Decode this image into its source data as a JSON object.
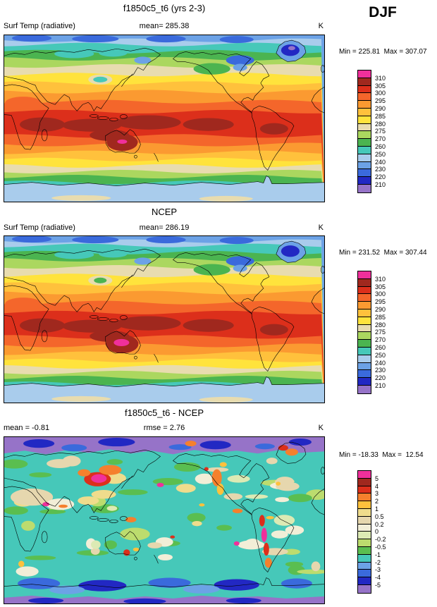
{
  "figure": {
    "season": "DJF",
    "panels": [
      {
        "title": "f1850c5_t6 (yrs 2-3)",
        "left": "Surf Temp (radiative)",
        "center": "mean= 285.38",
        "unit": "K",
        "minmax": "Min = 225.81  Max = 307.07"
      },
      {
        "title": "NCEP",
        "left": "Surf Temp (radiative)",
        "center": "mean= 286.19",
        "unit": "K",
        "minmax": "Min = 231.52  Max = 307.44"
      },
      {
        "title": "f1850c5_t6 - NCEP",
        "left": "mean = -0.81",
        "center": "rmse =  2.76",
        "unit": "K",
        "minmax": "Min = -18.33  Max =  12.54"
      }
    ]
  },
  "chart_data": [
    {
      "type": "heatmap",
      "subtype": "filled_contour_global_map",
      "season": "DJF",
      "title": "f1850c5_t6 (yrs 2-3)",
      "variable": "Surf Temp (radiative)",
      "units": "K",
      "stats": {
        "mean": 285.38,
        "min": 225.81,
        "max": 307.07
      },
      "contour_levels": [
        210,
        220,
        230,
        240,
        250,
        260,
        270,
        275,
        280,
        285,
        290,
        295,
        300,
        305,
        310
      ],
      "colorbar_labels_top_to_bottom": [
        "310",
        "305",
        "300",
        "295",
        "290",
        "285",
        "280",
        "275",
        "270",
        "260",
        "250",
        "240",
        "230",
        "220",
        "210"
      ],
      "colors_top_to_bottom": [
        "#F0309B",
        "#A0281E",
        "#DC2F1B",
        "#F4662B",
        "#FB9A31",
        "#FFC13C",
        "#FFE33C",
        "#E8DCAF",
        "#ABD75F",
        "#4BB450",
        "#46C8B9",
        "#A9CCEC",
        "#6CA2E6",
        "#3A6ADC",
        "#2228C3",
        "#9673C8"
      ]
    },
    {
      "type": "heatmap",
      "subtype": "filled_contour_global_map",
      "season": "DJF",
      "title": "NCEP",
      "variable": "Surf Temp (radiative)",
      "units": "K",
      "stats": {
        "mean": 286.19,
        "min": 231.52,
        "max": 307.44
      },
      "contour_levels": [
        210,
        220,
        230,
        240,
        250,
        260,
        270,
        275,
        280,
        285,
        290,
        295,
        300,
        305,
        310
      ],
      "colorbar_labels_top_to_bottom": [
        "310",
        "305",
        "300",
        "295",
        "290",
        "285",
        "280",
        "275",
        "270",
        "260",
        "250",
        "240",
        "230",
        "220",
        "210"
      ],
      "colors_top_to_bottom": [
        "#F0309B",
        "#A0281E",
        "#DC2F1B",
        "#F4662B",
        "#FB9A31",
        "#FFC13C",
        "#FFE33C",
        "#E8DCAF",
        "#ABD75F",
        "#4BB450",
        "#46C8B9",
        "#A9CCEC",
        "#6CA2E6",
        "#3A6ADC",
        "#2228C3",
        "#9673C8"
      ]
    },
    {
      "type": "heatmap",
      "subtype": "filled_contour_global_map_difference",
      "season": "DJF",
      "title": "f1850c5_t6 - NCEP",
      "variable": "Surf Temp (radiative) difference",
      "units": "K",
      "stats": {
        "mean": -0.81,
        "rmse": 2.76,
        "min": -18.33,
        "max": 12.54
      },
      "contour_levels": [
        -5,
        -4,
        -3,
        -2,
        -1,
        -0.5,
        -0.2,
        0,
        0.2,
        0.5,
        1,
        2,
        3,
        4,
        5
      ],
      "colorbar_labels_top_to_bottom": [
        "5",
        "4",
        "3",
        "2",
        "1",
        "0.5",
        "0.2",
        "0",
        "-0.2",
        "-0.5",
        "-1",
        "-2",
        "-3",
        "-4",
        "-5"
      ],
      "colors_top_to_bottom": [
        "#F0309B",
        "#A0281E",
        "#DC2F1B",
        "#F5802D",
        "#FFC13C",
        "#EFDC8C",
        "#E6D7AE",
        "#F2EED7",
        "#DCEAB4",
        "#BCDC6E",
        "#5ABE50",
        "#46C8B9",
        "#6CA2E6",
        "#3A6ADC",
        "#2228C3",
        "#9673C8"
      ]
    }
  ]
}
